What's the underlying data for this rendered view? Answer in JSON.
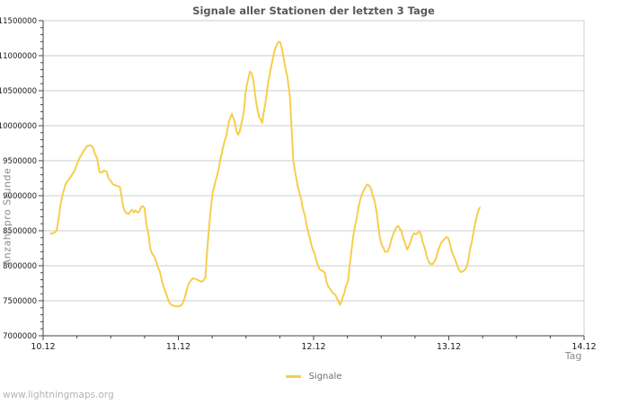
{
  "watermark": "www.lightningmaps.org",
  "colors": {
    "line": "#F7CE4B",
    "grid": "#CCCCCC",
    "axis": "#444444",
    "tick_text": "#1A1A1A",
    "title_text": "#595959",
    "muted_text": "#8A8A8A",
    "legend_text": "#6E6E6E",
    "watermark_text": "#B3B3B3",
    "background": "#FFFFFF"
  },
  "chart_data": {
    "type": "line",
    "title": "Signale aller Stationen der letzten 3 Tage",
    "grid": "horizontal-major",
    "legend": {
      "position": "bottom-center",
      "entries": [
        {
          "label": "Signale",
          "color": "#F7CE4B"
        }
      ]
    },
    "x_axis": {
      "title": "Tag",
      "tick_labels": [
        "10.12",
        "11.12",
        "12.12",
        "13.12",
        "14.12"
      ],
      "tick_hours": [
        0,
        24,
        48,
        72,
        96
      ],
      "minor_tick_step_hours": 6,
      "range_hours": [
        0,
        96
      ]
    },
    "y_axis": {
      "title": "Anzahl pro Stunde",
      "tick_labels": [
        "7000000",
        "7500000",
        "8000000",
        "8500000",
        "9000000",
        "9500000",
        "10000000",
        "10500000",
        "11000000",
        "11500000"
      ],
      "tick_values": [
        7000000,
        7500000,
        8000000,
        8500000,
        9000000,
        9500000,
        10000000,
        10500000,
        11000000,
        11500000
      ],
      "minor_tick_step": 100000,
      "range": [
        7000000,
        11500000
      ]
    },
    "series": [
      {
        "name": "Signale",
        "color": "#F7CE4B",
        "x_unit": "hours since 10.12 00:00",
        "points": [
          [
            1.3,
            8460000
          ],
          [
            2.0,
            8470000
          ],
          [
            2.4,
            8500000
          ],
          [
            2.7,
            8650000
          ],
          [
            3.1,
            8870000
          ],
          [
            3.4,
            9000000
          ],
          [
            4.0,
            9170000
          ],
          [
            4.8,
            9260000
          ],
          [
            5.6,
            9360000
          ],
          [
            6.4,
            9530000
          ],
          [
            7.2,
            9640000
          ],
          [
            7.8,
            9710000
          ],
          [
            8.3,
            9720000
          ],
          [
            8.8,
            9700000
          ],
          [
            9.2,
            9600000
          ],
          [
            9.6,
            9530000
          ],
          [
            10.0,
            9340000
          ],
          [
            10.4,
            9330000
          ],
          [
            10.8,
            9360000
          ],
          [
            11.3,
            9340000
          ],
          [
            11.6,
            9250000
          ],
          [
            12.0,
            9210000
          ],
          [
            12.4,
            9160000
          ],
          [
            12.8,
            9150000
          ],
          [
            13.2,
            9140000
          ],
          [
            13.6,
            9130000
          ],
          [
            13.9,
            9000000
          ],
          [
            14.2,
            8850000
          ],
          [
            14.5,
            8780000
          ],
          [
            14.8,
            8750000
          ],
          [
            15.2,
            8740000
          ],
          [
            15.5,
            8780000
          ],
          [
            15.8,
            8800000
          ],
          [
            16.1,
            8760000
          ],
          [
            16.4,
            8790000
          ],
          [
            16.8,
            8760000
          ],
          [
            17.1,
            8780000
          ],
          [
            17.4,
            8840000
          ],
          [
            17.7,
            8850000
          ],
          [
            18.0,
            8820000
          ],
          [
            18.3,
            8600000
          ],
          [
            18.7,
            8450000
          ],
          [
            19.0,
            8250000
          ],
          [
            19.3,
            8180000
          ],
          [
            19.8,
            8120000
          ],
          [
            20.1,
            8050000
          ],
          [
            20.4,
            7970000
          ],
          [
            20.7,
            7920000
          ],
          [
            21.2,
            7750000
          ],
          [
            21.7,
            7630000
          ],
          [
            22.0,
            7560000
          ],
          [
            22.3,
            7490000
          ],
          [
            22.6,
            7450000
          ],
          [
            23.1,
            7430000
          ],
          [
            23.6,
            7420000
          ],
          [
            24.1,
            7420000
          ],
          [
            24.6,
            7440000
          ],
          [
            24.9,
            7490000
          ],
          [
            25.2,
            7560000
          ],
          [
            25.5,
            7660000
          ],
          [
            25.8,
            7740000
          ],
          [
            26.2,
            7790000
          ],
          [
            26.6,
            7820000
          ],
          [
            27.1,
            7810000
          ],
          [
            27.6,
            7790000
          ],
          [
            28.1,
            7770000
          ],
          [
            28.5,
            7790000
          ],
          [
            28.8,
            7840000
          ],
          [
            29.0,
            8100000
          ],
          [
            29.3,
            8400000
          ],
          [
            29.5,
            8600000
          ],
          [
            29.8,
            8850000
          ],
          [
            30.1,
            9050000
          ],
          [
            30.5,
            9180000
          ],
          [
            30.9,
            9300000
          ],
          [
            31.2,
            9400000
          ],
          [
            31.4,
            9500000
          ],
          [
            31.7,
            9600000
          ],
          [
            31.9,
            9680000
          ],
          [
            32.2,
            9780000
          ],
          [
            32.5,
            9850000
          ],
          [
            32.7,
            9950000
          ],
          [
            33.0,
            10060000
          ],
          [
            33.3,
            10130000
          ],
          [
            33.5,
            10170000
          ],
          [
            33.8,
            10100000
          ],
          [
            34.1,
            10020000
          ],
          [
            34.3,
            9920000
          ],
          [
            34.6,
            9870000
          ],
          [
            34.9,
            9920000
          ],
          [
            35.1,
            10000000
          ],
          [
            35.4,
            10100000
          ],
          [
            35.7,
            10260000
          ],
          [
            35.9,
            10450000
          ],
          [
            36.2,
            10600000
          ],
          [
            36.5,
            10700000
          ],
          [
            36.7,
            10770000
          ],
          [
            37.0,
            10750000
          ],
          [
            37.3,
            10660000
          ],
          [
            37.5,
            10510000
          ],
          [
            37.8,
            10340000
          ],
          [
            38.1,
            10210000
          ],
          [
            38.3,
            10130000
          ],
          [
            38.6,
            10090000
          ],
          [
            38.9,
            10040000
          ],
          [
            39.1,
            10170000
          ],
          [
            39.4,
            10300000
          ],
          [
            39.7,
            10470000
          ],
          [
            39.9,
            10600000
          ],
          [
            40.2,
            10730000
          ],
          [
            40.7,
            10930000
          ],
          [
            41.1,
            11080000
          ],
          [
            41.5,
            11160000
          ],
          [
            41.8,
            11200000
          ],
          [
            42.1,
            11190000
          ],
          [
            42.4,
            11100000
          ],
          [
            42.7,
            10950000
          ],
          [
            43.1,
            10780000
          ],
          [
            43.3,
            10720000
          ],
          [
            43.5,
            10600000
          ],
          [
            43.8,
            10400000
          ],
          [
            44.0,
            10100000
          ],
          [
            44.2,
            9800000
          ],
          [
            44.4,
            9500000
          ],
          [
            44.7,
            9350000
          ],
          [
            45.0,
            9220000
          ],
          [
            45.2,
            9130000
          ],
          [
            45.5,
            9040000
          ],
          [
            45.8,
            8950000
          ],
          [
            46.0,
            8850000
          ],
          [
            46.3,
            8760000
          ],
          [
            46.6,
            8660000
          ],
          [
            46.8,
            8560000
          ],
          [
            47.1,
            8460000
          ],
          [
            47.4,
            8380000
          ],
          [
            47.6,
            8300000
          ],
          [
            47.9,
            8220000
          ],
          [
            48.2,
            8170000
          ],
          [
            48.4,
            8100000
          ],
          [
            48.7,
            8020000
          ],
          [
            49.0,
            7960000
          ],
          [
            49.2,
            7940000
          ],
          [
            49.5,
            7930000
          ],
          [
            49.7,
            7920000
          ],
          [
            50.0,
            7900000
          ],
          [
            50.3,
            7770000
          ],
          [
            50.5,
            7720000
          ],
          [
            50.8,
            7680000
          ],
          [
            51.1,
            7650000
          ],
          [
            51.3,
            7620000
          ],
          [
            51.6,
            7600000
          ],
          [
            51.9,
            7580000
          ],
          [
            52.1,
            7540000
          ],
          [
            52.4,
            7500000
          ],
          [
            52.7,
            7440000
          ],
          [
            52.9,
            7480000
          ],
          [
            53.2,
            7560000
          ],
          [
            53.5,
            7620000
          ],
          [
            53.7,
            7700000
          ],
          [
            54.1,
            7780000
          ],
          [
            54.4,
            8000000
          ],
          [
            54.7,
            8200000
          ],
          [
            55.0,
            8400000
          ],
          [
            55.3,
            8550000
          ],
          [
            55.7,
            8700000
          ],
          [
            56.0,
            8850000
          ],
          [
            56.3,
            8950000
          ],
          [
            56.6,
            9020000
          ],
          [
            56.9,
            9080000
          ],
          [
            57.2,
            9120000
          ],
          [
            57.5,
            9160000
          ],
          [
            57.9,
            9140000
          ],
          [
            58.2,
            9100000
          ],
          [
            58.5,
            9000000
          ],
          [
            58.8,
            8940000
          ],
          [
            59.2,
            8760000
          ],
          [
            59.5,
            8560000
          ],
          [
            59.8,
            8380000
          ],
          [
            60.1,
            8300000
          ],
          [
            60.4,
            8250000
          ],
          [
            60.7,
            8200000
          ],
          [
            61.1,
            8200000
          ],
          [
            61.4,
            8250000
          ],
          [
            61.7,
            8340000
          ],
          [
            62.0,
            8420000
          ],
          [
            62.3,
            8490000
          ],
          [
            62.7,
            8550000
          ],
          [
            63.0,
            8570000
          ],
          [
            63.3,
            8530000
          ],
          [
            63.6,
            8490000
          ],
          [
            63.9,
            8400000
          ],
          [
            64.3,
            8300000
          ],
          [
            64.6,
            8230000
          ],
          [
            64.9,
            8280000
          ],
          [
            65.2,
            8340000
          ],
          [
            65.5,
            8420000
          ],
          [
            65.8,
            8460000
          ],
          [
            66.2,
            8450000
          ],
          [
            66.5,
            8470000
          ],
          [
            66.8,
            8490000
          ],
          [
            67.1,
            8430000
          ],
          [
            67.4,
            8330000
          ],
          [
            67.8,
            8230000
          ],
          [
            68.1,
            8130000
          ],
          [
            68.4,
            8060000
          ],
          [
            68.7,
            8030000
          ],
          [
            69.0,
            8020000
          ],
          [
            69.4,
            8050000
          ],
          [
            69.7,
            8100000
          ],
          [
            70.0,
            8190000
          ],
          [
            70.3,
            8260000
          ],
          [
            70.6,
            8320000
          ],
          [
            71.0,
            8360000
          ],
          [
            71.3,
            8390000
          ],
          [
            71.6,
            8410000
          ],
          [
            71.9,
            8390000
          ],
          [
            72.2,
            8310000
          ],
          [
            72.5,
            8210000
          ],
          [
            72.9,
            8130000
          ],
          [
            73.2,
            8070000
          ],
          [
            73.5,
            8000000
          ],
          [
            73.8,
            7940000
          ],
          [
            74.1,
            7910000
          ],
          [
            74.5,
            7920000
          ],
          [
            74.8,
            7940000
          ],
          [
            75.1,
            7970000
          ],
          [
            75.4,
            8050000
          ],
          [
            75.7,
            8210000
          ],
          [
            76.1,
            8350000
          ],
          [
            76.4,
            8490000
          ],
          [
            76.7,
            8620000
          ],
          [
            77.0,
            8720000
          ],
          [
            77.3,
            8800000
          ],
          [
            77.5,
            8830000
          ]
        ]
      }
    ]
  }
}
